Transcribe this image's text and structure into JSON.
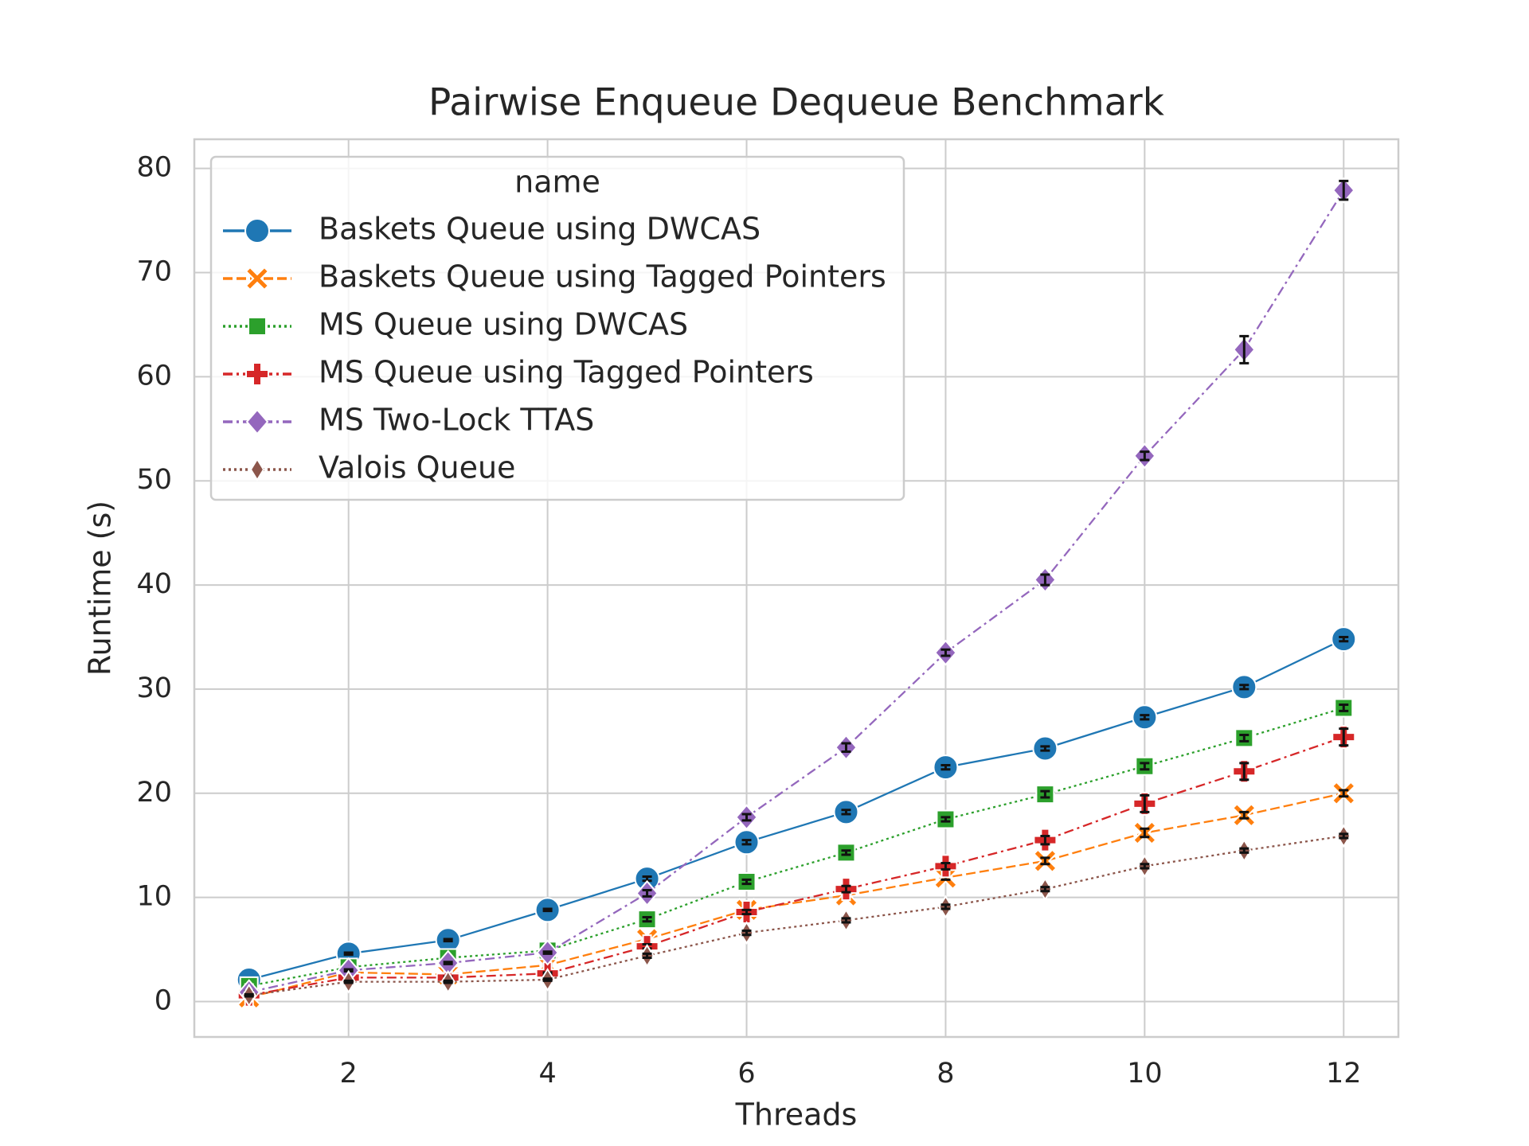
{
  "chart_data": {
    "type": "line",
    "title": "Pairwise Enqueue Dequeue Benchmark",
    "x_label": "Threads",
    "y_label": "Runtime (s)",
    "legend_title": "name",
    "legend_position": "upper left",
    "grid": true,
    "x": [
      1,
      2,
      3,
      4,
      5,
      6,
      7,
      8,
      9,
      10,
      11,
      12
    ],
    "xlim": [
      0.45,
      12.55
    ],
    "xticks": [
      2,
      4,
      6,
      8,
      10,
      12
    ],
    "ylim": [
      -3.4,
      82.8
    ],
    "yticks": [
      0,
      10,
      20,
      30,
      40,
      50,
      60,
      70,
      80
    ],
    "series": [
      {
        "name": "Baskets Queue using DWCAS",
        "color": "#1f77b4",
        "marker": "circle",
        "linestyle": "solid",
        "values": [
          2.1,
          4.6,
          5.9,
          8.8,
          11.8,
          15.3,
          18.2,
          22.5,
          24.3,
          27.3,
          30.2,
          34.8
        ],
        "errors": [
          0.1,
          0.1,
          0.1,
          0.1,
          0.2,
          0.2,
          0.2,
          0.2,
          0.2,
          0.2,
          0.2,
          0.2
        ]
      },
      {
        "name": "Baskets Queue using Tagged Pointers",
        "color": "#ff7f0e",
        "marker": "x",
        "linestyle": "dashed",
        "values": [
          0.4,
          2.8,
          2.6,
          3.5,
          6.0,
          8.8,
          10.2,
          11.9,
          13.5,
          16.2,
          17.9,
          20.0
        ],
        "errors": [
          0.1,
          0.1,
          0.1,
          0.1,
          0.2,
          0.2,
          0.2,
          0.2,
          0.3,
          0.4,
          0.3,
          0.3
        ]
      },
      {
        "name": "MS Queue using DWCAS",
        "color": "#2ca02c",
        "marker": "square",
        "linestyle": "dotted",
        "values": [
          1.5,
          3.3,
          4.2,
          4.9,
          7.9,
          11.5,
          14.3,
          17.5,
          19.9,
          22.6,
          25.3,
          28.2
        ],
        "errors": [
          0.1,
          0.1,
          0.1,
          0.1,
          0.2,
          0.2,
          0.2,
          0.2,
          0.3,
          0.3,
          0.3,
          0.3
        ]
      },
      {
        "name": "MS Queue using Tagged Pointers",
        "color": "#d62728",
        "marker": "plus",
        "linestyle": "dashdot",
        "values": [
          0.6,
          2.3,
          2.3,
          2.7,
          5.3,
          8.6,
          10.8,
          13.0,
          15.5,
          19.0,
          22.1,
          25.4
        ],
        "errors": [
          0.1,
          0.1,
          0.1,
          0.1,
          0.2,
          0.2,
          0.3,
          0.3,
          0.4,
          0.8,
          0.8,
          0.8
        ]
      },
      {
        "name": "MS Two-Lock TTAS",
        "color": "#9467bd",
        "marker": "diamond",
        "linestyle": "dashdot",
        "values": [
          0.9,
          3.0,
          3.7,
          4.7,
          10.4,
          17.7,
          24.4,
          33.5,
          40.5,
          52.4,
          62.6,
          77.9
        ],
        "errors": [
          0.1,
          0.1,
          0.1,
          0.1,
          0.3,
          0.3,
          0.4,
          0.3,
          0.5,
          0.4,
          1.3,
          0.9
        ]
      },
      {
        "name": "Valois Queue",
        "color": "#8c564b",
        "marker": "thin_diamond",
        "linestyle": "dotted",
        "values": [
          0.6,
          1.9,
          1.9,
          2.1,
          4.4,
          6.6,
          7.8,
          9.1,
          10.8,
          13.0,
          14.5,
          15.9
        ],
        "errors": [
          0.1,
          0.1,
          0.1,
          0.1,
          0.2,
          0.2,
          0.2,
          0.2,
          0.2,
          0.2,
          0.2,
          0.2
        ]
      }
    ]
  }
}
